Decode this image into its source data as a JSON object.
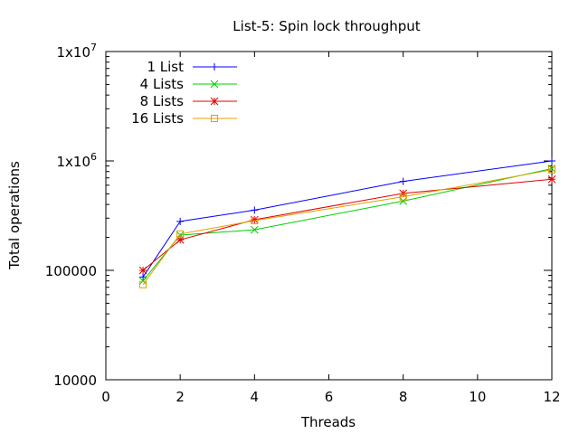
{
  "chart_data": {
    "type": "line",
    "title": "List-5: Spin lock throughput",
    "xlabel": "Threads",
    "ylabel": "Total operations",
    "xlim": [
      0,
      12
    ],
    "ylim": [
      10000,
      10000000
    ],
    "yscale": "log",
    "grid": false,
    "legend_position": "top-left",
    "x_ticks": [
      0,
      2,
      4,
      6,
      8,
      10,
      12
    ],
    "x_tick_labels": [
      "0",
      "2",
      "4",
      "6",
      "8",
      "10",
      "12"
    ],
    "y_ticks": [
      10000,
      100000,
      1000000,
      10000000
    ],
    "y_tick_labels": [
      {
        "base": "10000",
        "exp": ""
      },
      {
        "base": "100000",
        "exp": ""
      },
      {
        "base": "1x10",
        "exp": "6"
      },
      {
        "base": "1x10",
        "exp": "7"
      }
    ],
    "series": [
      {
        "name": "1 List",
        "color": "#0000ff",
        "marker": "plus",
        "x": [
          1,
          2,
          4,
          8,
          12
        ],
        "y": [
          87000,
          280000,
          355000,
          650000,
          1000000
        ]
      },
      {
        "name": "4 Lists",
        "color": "#00d000",
        "marker": "cross",
        "x": [
          1,
          2,
          4,
          8,
          12
        ],
        "y": [
          80000,
          210000,
          235000,
          430000,
          850000
        ]
      },
      {
        "name": "8 Lists",
        "color": "#e00000",
        "marker": "star",
        "x": [
          1,
          2,
          4,
          8,
          12
        ],
        "y": [
          100000,
          190000,
          290000,
          505000,
          680000
        ]
      },
      {
        "name": "16 Lists",
        "color": "#e0a000",
        "marker": "square",
        "x": [
          1,
          2,
          4,
          8,
          12
        ],
        "y": [
          74000,
          215000,
          285000,
          470000,
          830000
        ]
      }
    ]
  }
}
